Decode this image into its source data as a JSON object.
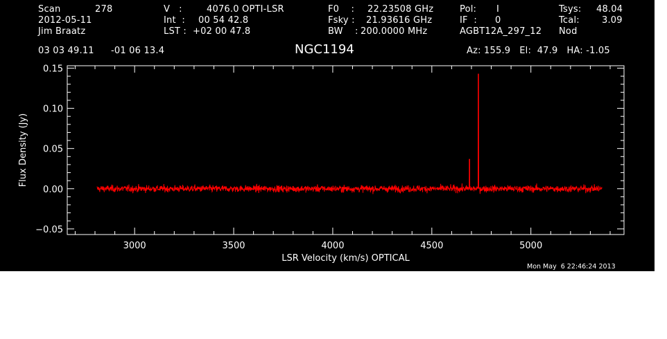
{
  "header": {
    "scan_label": "Scan",
    "scan_value": "278",
    "date": "2012-05-11",
    "observer": "Jim Braatz",
    "v_label": "V   :",
    "v_value": "4076.0 OPTI-LSR",
    "int_label": "Int  :",
    "int_value": "00 54 42.8",
    "lst_label": "LST :",
    "lst_value": "+02 00 47.8",
    "f0_label": "F0    :",
    "f0_value": "22.23508 GHz",
    "fsky_label": "Fsky :",
    "fsky_value": "21.93616 GHz",
    "bw_label": "BW    :",
    "bw_value": "200.0000 MHz",
    "pol_label": "Pol:",
    "pol_value": "I",
    "if_label": "IF  :",
    "if_value": "0",
    "project": "AGBT12A_297_12",
    "tsys_label": "Tsys:",
    "tsys_value": "48.04",
    "tcal_label": "Tcal:",
    "tcal_value": "3.09",
    "mode": "Nod",
    "ra": "03 03 49.11",
    "dec": "-01 06 13.4",
    "source": "NGC1194",
    "az_el_ha": "Az: 155.9   El:  47.9   HA: -1.05",
    "timestamp": "Mon May  6 22:46:24 2013"
  },
  "chart_data": {
    "type": "line",
    "title": "NGC1194",
    "xlabel": "LSR Velocity (km/s) OPTICAL",
    "ylabel": "Flux Density (Jy)",
    "xlim": [
      2660,
      5470
    ],
    "ylim": [
      -0.057,
      0.153
    ],
    "xticks": [
      3000,
      3500,
      4000,
      4500,
      5000
    ],
    "xtick_labels": [
      "3000",
      "3500",
      "4000",
      "4500",
      "5000"
    ],
    "yticks": [
      -0.05,
      0.0,
      0.05,
      0.1,
      0.15
    ],
    "ytick_labels": [
      "−0.05",
      "0.00",
      "0.05",
      "0.10",
      "0.15"
    ],
    "series": [
      {
        "color": "#ff0000",
        "x_range": [
          2810,
          5360
        ],
        "noise_rms": 0.003,
        "noise_peak": 0.012,
        "features": [
          {
            "x": 4690,
            "y": 0.037
          },
          {
            "x": 4735,
            "y": 0.143
          }
        ]
      }
    ],
    "grid": false
  },
  "colors": {
    "background": "#000000",
    "axes": "#ffffff",
    "trace": "#ff0000"
  }
}
